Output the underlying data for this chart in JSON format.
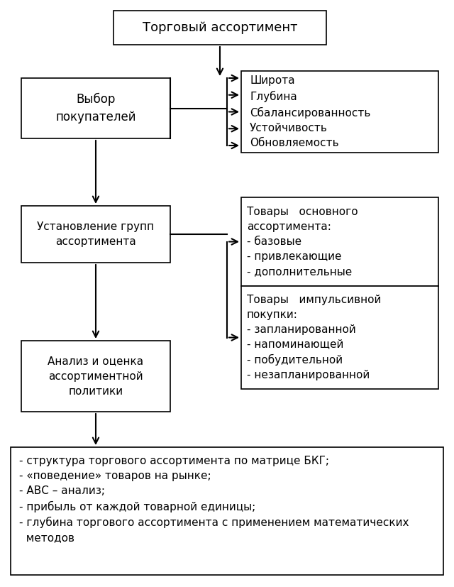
{
  "title": "Торговый ассортимент",
  "box1": "Выбор\nпокупателей",
  "box2": "Установление групп\nассортимента",
  "box3": "Анализ и оценка\nассортиментной\nполитики",
  "box_right1_lines": [
    "Широта",
    "Глубина",
    "Сбалансированность",
    "Устойчивость",
    "Обновляемость"
  ],
  "box_right2a": "Товары   основного\nассортимента:\n- базовые\n- привлекающие\n- дополнительные",
  "box_right2b": "Товары   импульсивной\nпокупки:\n- запланированной\n- напоминающей\n- побудительной\n- незапланированной",
  "box_bottom": "- структура торгового ассортимента по матрице БКГ;\n- «поведение» товаров на рынке;\n- АВС – анализ;\n- прибыль от каждой товарной единицы;\n- глубина торгового ассортимента с применением математических\n  методов",
  "bg_color": "#ffffff",
  "box_color": "#ffffff",
  "border_color": "#000000",
  "text_color": "#000000"
}
